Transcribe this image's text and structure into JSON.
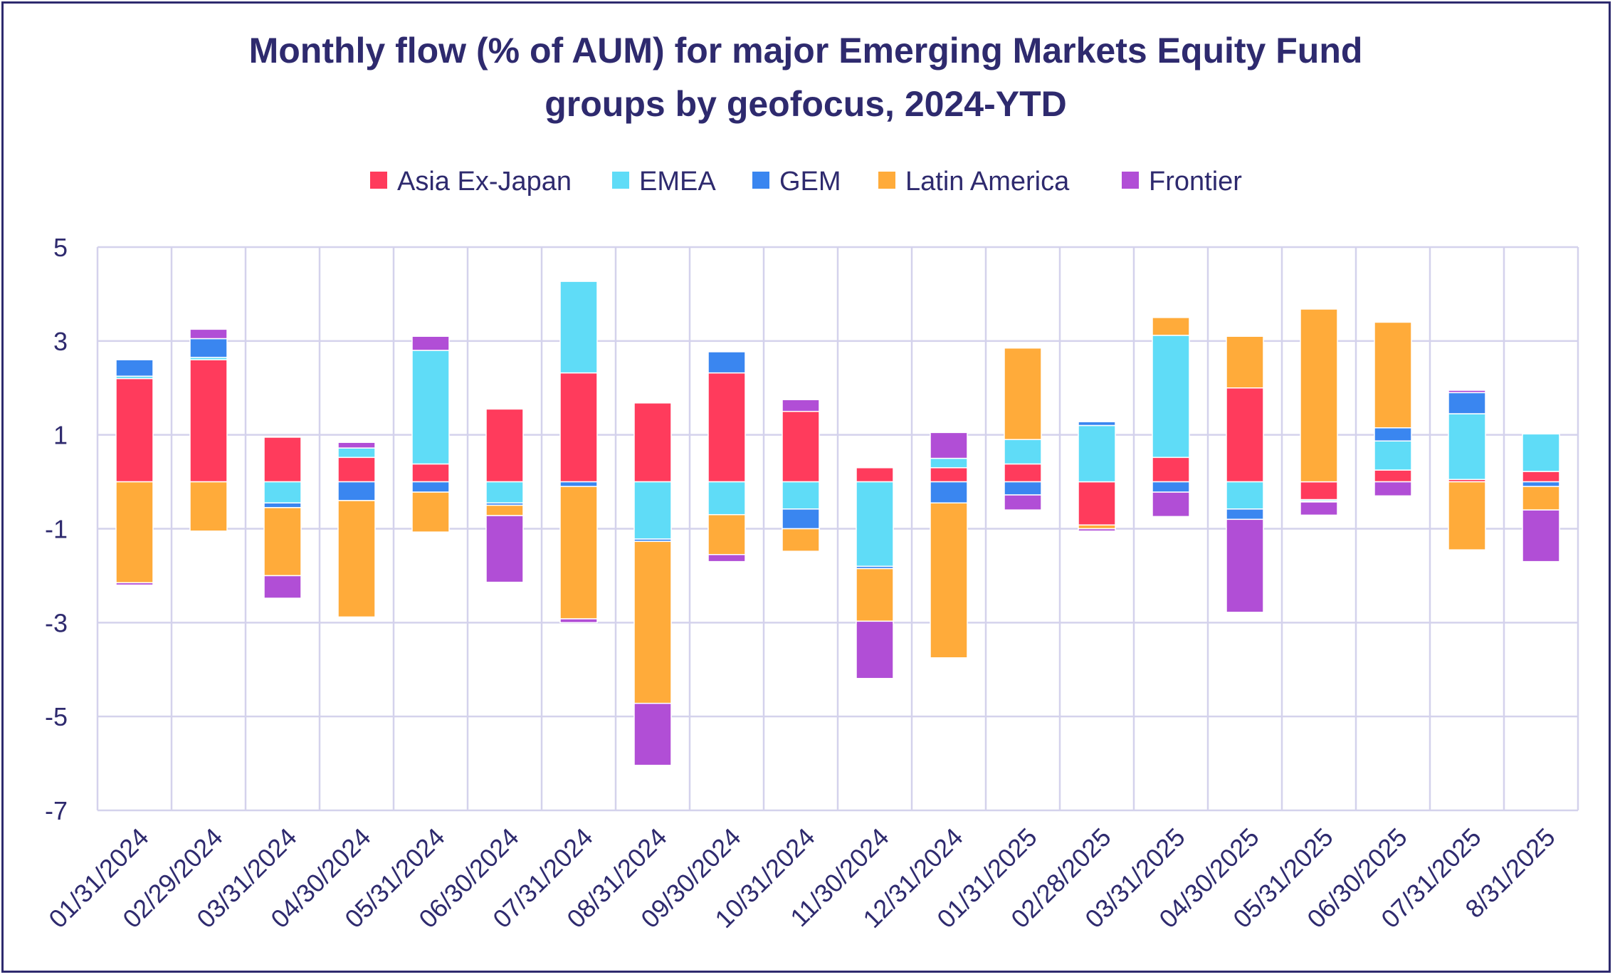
{
  "chart_data": {
    "type": "bar",
    "stacked": true,
    "title_lines": [
      "Monthly flow (% of AUM) for major Emerging Markets Equity Fund",
      "groups by geofocus, 2024-YTD"
    ],
    "xlabel": "",
    "ylabel": "",
    "ylim": [
      -7,
      5
    ],
    "yticks": [
      "5",
      "3",
      "1",
      "-1",
      "-3",
      "-5",
      "-7"
    ],
    "grid": true,
    "legend_position": "top",
    "categories": [
      "01/31/2024",
      "02/29/2024",
      "03/31/2024",
      "04/30/2024",
      "05/31/2024",
      "06/30/2024",
      "07/31/2024",
      "08/31/2024",
      "09/30/2024",
      "10/31/2024",
      "11/30/2024",
      "12/31/2024",
      "01/31/2025",
      "02/28/2025",
      "03/31/2025",
      "04/30/2025",
      "05/31/2025",
      "06/30/2025",
      "07/31/2025",
      "8/31/2025"
    ],
    "series": [
      {
        "name": "Asia Ex-Japan",
        "color": "#ff3b5c",
        "values": [
          2.2,
          2.6,
          0.95,
          0.52,
          0.38,
          1.55,
          2.32,
          1.68,
          2.32,
          1.5,
          0.3,
          0.3,
          0.38,
          -0.92,
          0.52,
          2.0,
          -0.38,
          0.25,
          0.05,
          0.22
        ]
      },
      {
        "name": "EMEA",
        "color": "#5fdcf7",
        "values": [
          0.05,
          0.05,
          -0.45,
          0.2,
          2.42,
          -0.45,
          1.95,
          -1.22,
          -0.7,
          -0.58,
          -1.8,
          0.2,
          0.52,
          1.2,
          2.6,
          -0.58,
          -0.03,
          0.62,
          1.4,
          0.8
        ]
      },
      {
        "name": "GEM",
        "color": "#3a86f0",
        "values": [
          0.35,
          0.4,
          -0.1,
          -0.4,
          -0.22,
          -0.05,
          -0.1,
          -0.05,
          0.45,
          -0.42,
          -0.05,
          -0.45,
          -0.28,
          0.08,
          -0.22,
          -0.22,
          -0.02,
          0.28,
          0.45,
          -0.1
        ]
      },
      {
        "name": "Latin America",
        "color": "#ffab3a",
        "values": [
          -2.15,
          -1.05,
          -1.45,
          -2.48,
          -0.85,
          -0.22,
          -2.82,
          -3.45,
          -0.85,
          -0.48,
          -1.12,
          -3.3,
          1.95,
          -0.08,
          0.38,
          1.1,
          3.68,
          2.25,
          -1.45,
          -0.5
        ]
      },
      {
        "name": "Frontier",
        "color": "#b14ed6",
        "values": [
          -0.05,
          0.2,
          -0.48,
          0.12,
          0.3,
          -1.42,
          -0.08,
          -1.32,
          -0.15,
          0.25,
          -1.22,
          0.55,
          -0.32,
          -0.05,
          -0.52,
          -1.98,
          -0.28,
          -0.3,
          0.05,
          -1.1
        ]
      }
    ]
  }
}
